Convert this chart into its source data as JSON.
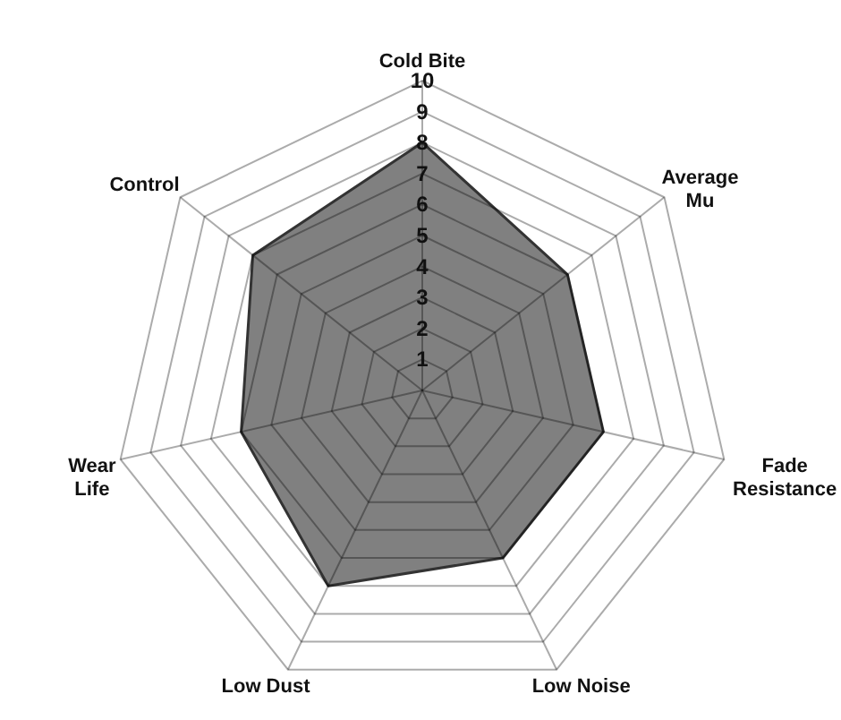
{
  "chart_data": {
    "type": "radar",
    "categories": [
      "Cold Bite",
      "Average Mu",
      "Fade Resistance",
      "Low Noise",
      "Low Dust",
      "Wear Life",
      "Control"
    ],
    "series": [
      {
        "color": "#808080",
        "values": [
          8,
          6,
          6,
          6,
          7,
          6,
          7
        ]
      }
    ],
    "ylim": [
      0,
      10
    ],
    "yticks": [
      1,
      2,
      3,
      4,
      5,
      6,
      7,
      8,
      9,
      10
    ],
    "grid": true
  }
}
